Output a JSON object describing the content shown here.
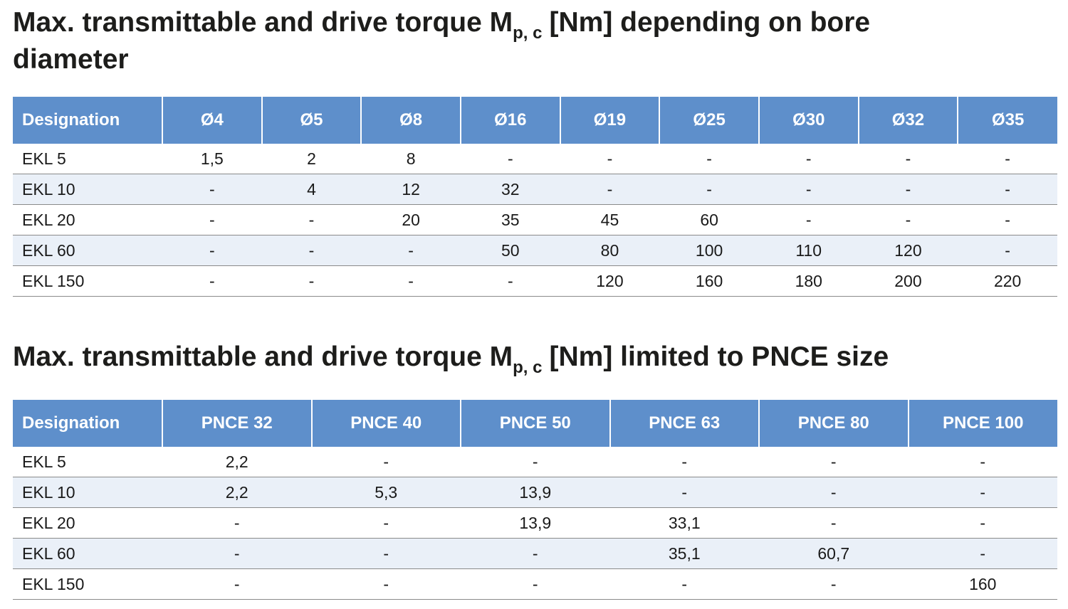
{
  "sections": [
    {
      "title": {
        "main": "Max. transmittable and drive torque M",
        "subscript": "p, c",
        "rest": "[Nm] depending on bore diameter"
      },
      "table": {
        "header": [
          "Designation",
          "Ø4",
          "Ø5",
          "Ø8",
          "Ø16",
          "Ø19",
          "Ø25",
          "Ø30",
          "Ø32",
          "Ø35"
        ],
        "rows": [
          [
            "EKL 5",
            "1,5",
            "2",
            "8",
            "-",
            "-",
            "-",
            "-",
            "-",
            "-"
          ],
          [
            "EKL 10",
            "-",
            "4",
            "12",
            "32",
            "-",
            "-",
            "-",
            "-",
            "-"
          ],
          [
            "EKL 20",
            "-",
            "-",
            "20",
            "35",
            "45",
            "60",
            "-",
            "-",
            "-"
          ],
          [
            "EKL 60",
            "-",
            "-",
            "-",
            "50",
            "80",
            "100",
            "110",
            "120",
            "-"
          ],
          [
            "EKL 150",
            "-",
            "-",
            "-",
            "-",
            "120",
            "160",
            "180",
            "200",
            "220"
          ]
        ]
      }
    },
    {
      "title": {
        "main": "Max. transmittable and drive torque M",
        "subscript": "p, c",
        "rest": "[Nm] limited to PNCE size"
      },
      "table": {
        "header": [
          "Designation",
          "PNCE 32",
          "PNCE 40",
          "PNCE 50",
          "PNCE 63",
          "PNCE 80",
          "PNCE 100"
        ],
        "rows": [
          [
            "EKL 5",
            "2,2",
            "-",
            "-",
            "-",
            "-",
            "-"
          ],
          [
            "EKL 10",
            "2,2",
            "5,3",
            "13,9",
            "-",
            "-",
            "-"
          ],
          [
            "EKL 20",
            "-",
            "-",
            "13,9",
            "33,1",
            "-",
            "-"
          ],
          [
            "EKL 60",
            "-",
            "-",
            "-",
            "35,1",
            "60,7",
            "-"
          ],
          [
            "EKL 150",
            "-",
            "-",
            "-",
            "-",
            "-",
            "160"
          ]
        ]
      }
    }
  ]
}
